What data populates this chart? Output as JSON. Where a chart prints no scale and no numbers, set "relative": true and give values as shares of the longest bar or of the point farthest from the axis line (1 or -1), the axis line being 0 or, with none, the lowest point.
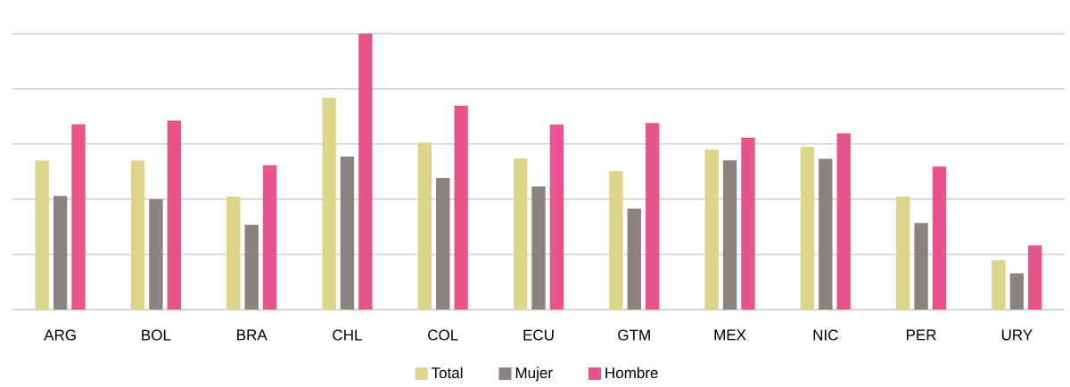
{
  "chart_data": {
    "type": "bar",
    "relative": true,
    "grid": "y",
    "legend": "bottom",
    "categories": [
      "ARG",
      "BOL",
      "BRA",
      "CHL",
      "COL",
      "ECU",
      "GTM",
      "MEX",
      "NIC",
      "PER",
      "URY"
    ],
    "series": [
      {
        "name": "Total",
        "color": "#ddd58a",
        "values": [
          0.54,
          0.54,
          0.409,
          0.767,
          0.605,
          0.547,
          0.502,
          0.579,
          0.59,
          0.41,
          0.179
        ]
      },
      {
        "name": "Mujer",
        "color": "#8b8380",
        "values": [
          0.412,
          0.4,
          0.307,
          0.554,
          0.477,
          0.446,
          0.366,
          0.541,
          0.546,
          0.313,
          0.131
        ]
      },
      {
        "name": "Hombre",
        "color": "#e8558d",
        "values": [
          0.671,
          0.685,
          0.523,
          1.0,
          0.739,
          0.67,
          0.676,
          0.623,
          0.638,
          0.518,
          0.233
        ]
      }
    ]
  }
}
